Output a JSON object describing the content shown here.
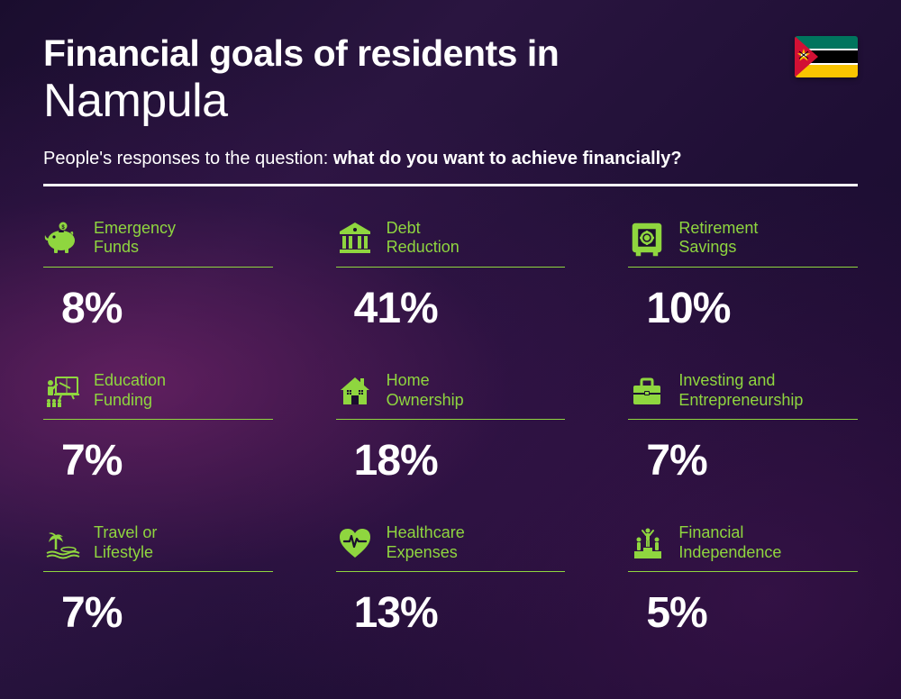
{
  "header": {
    "title_prefix": "Financial goals of residents in",
    "location": "Nampula",
    "subtitle_lead": "People's responses to the question: ",
    "subtitle_bold": "what do you want to achieve financially?"
  },
  "flag": {
    "stripes": [
      "#00755e",
      "#ffffff",
      "#000000",
      "#ffffff",
      "#f9c400"
    ],
    "triangle": "#d21034",
    "star": "#f9c400"
  },
  "accent_color": "#8fd63f",
  "text_color": "#ffffff",
  "items": [
    {
      "icon": "piggy-bank",
      "label": "Emergency\nFunds",
      "value": "8%"
    },
    {
      "icon": "bank",
      "label": "Debt\nReduction",
      "value": "41%"
    },
    {
      "icon": "safe",
      "label": "Retirement\nSavings",
      "value": "10%"
    },
    {
      "icon": "education",
      "label": "Education\nFunding",
      "value": "7%"
    },
    {
      "icon": "house",
      "label": "Home\nOwnership",
      "value": "18%"
    },
    {
      "icon": "briefcase",
      "label": "Investing and\nEntrepreneurship",
      "value": "7%"
    },
    {
      "icon": "travel",
      "label": "Travel or\nLifestyle",
      "value": "7%"
    },
    {
      "icon": "healthcare",
      "label": "Healthcare\nExpenses",
      "value": "13%"
    },
    {
      "icon": "independence",
      "label": "Financial\nIndependence",
      "value": "5%"
    }
  ]
}
